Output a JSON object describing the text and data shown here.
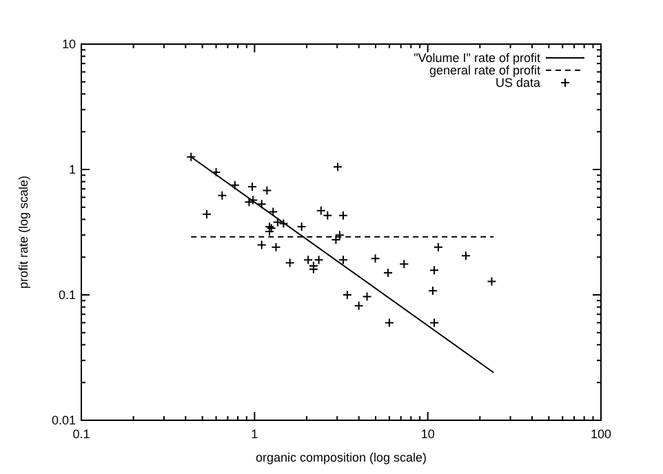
{
  "chart_data": {
    "type": "scatter",
    "xlabel": "organic composition (log scale)",
    "ylabel": "profit rate (log scale)",
    "log": "xy",
    "legend": "top right",
    "grid": false,
    "xlim": [
      0.1,
      100
    ],
    "ylim": [
      0.01,
      10
    ],
    "xticks": [
      0.1,
      {
        "value": 0.2,
        "label": null
      },
      {
        "value": 0.3,
        "label": null
      },
      {
        "value": 0.4,
        "label": null
      },
      {
        "value": 0.5,
        "label": null
      },
      {
        "value": 0.6,
        "label": null
      },
      {
        "value": 0.7,
        "label": null
      },
      {
        "value": 0.8,
        "label": null
      },
      {
        "value": 0.9,
        "label": null
      },
      1,
      {
        "value": 2,
        "label": null
      },
      {
        "value": 3,
        "label": null
      },
      {
        "value": 4,
        "label": null
      },
      {
        "value": 5,
        "label": null
      },
      {
        "value": 6,
        "label": null
      },
      {
        "value": 7,
        "label": null
      },
      {
        "value": 8,
        "label": null
      },
      {
        "value": 9,
        "label": null
      },
      10,
      {
        "value": 20,
        "label": null
      },
      {
        "value": 30,
        "label": null
      },
      {
        "value": 40,
        "label": null
      },
      {
        "value": 50,
        "label": null
      },
      {
        "value": 60,
        "label": null
      },
      {
        "value": 70,
        "label": null
      },
      {
        "value": 80,
        "label": null
      },
      {
        "value": 90,
        "label": null
      },
      100
    ],
    "yticks": [
      0.01,
      {
        "value": 0.02,
        "label": null
      },
      {
        "value": 0.03,
        "label": null
      },
      {
        "value": 0.04,
        "label": null
      },
      {
        "value": 0.05,
        "label": null
      },
      {
        "value": 0.06,
        "label": null
      },
      {
        "value": 0.07,
        "label": null
      },
      {
        "value": 0.08,
        "label": null
      },
      {
        "value": 0.09,
        "label": null
      },
      0.1,
      {
        "value": 0.2,
        "label": null
      },
      {
        "value": 0.3,
        "label": null
      },
      {
        "value": 0.4,
        "label": null
      },
      {
        "value": 0.5,
        "label": null
      },
      {
        "value": 0.6,
        "label": null
      },
      {
        "value": 0.7,
        "label": null
      },
      {
        "value": 0.8,
        "label": null
      },
      {
        "value": 0.9,
        "label": null
      },
      1,
      {
        "value": 2,
        "label": null
      },
      {
        "value": 3,
        "label": null
      },
      {
        "value": 4,
        "label": null
      },
      {
        "value": 5,
        "label": null
      },
      {
        "value": 6,
        "label": null
      },
      {
        "value": 7,
        "label": null
      },
      {
        "value": 8,
        "label": null
      },
      {
        "value": 9,
        "label": null
      },
      10
    ],
    "series": [
      {
        "name": "\"Volume I\" rate of profit",
        "type": "line",
        "line_style": "solid",
        "marker": "none",
        "color": "#000000",
        "x": [
          0.43,
          24
        ],
        "values": [
          1.26,
          0.024
        ]
      },
      {
        "name": "general rate of profit",
        "type": "line",
        "line_style": "dashed",
        "marker": "none",
        "color": "#000000",
        "x": [
          0.43,
          24
        ],
        "values": [
          0.29,
          0.29
        ]
      },
      {
        "name": "US data",
        "marker": "cross",
        "color": "#000000",
        "x": [
          0.43,
          0.53,
          0.6,
          0.65,
          0.77,
          0.97,
          0.93,
          0.98,
          1.1,
          1.18,
          1.28,
          1.22,
          1.25,
          1.22,
          1.36,
          1.47,
          1.1,
          1.33,
          1.87,
          1.6,
          2.04,
          2.19,
          2.19,
          2.35,
          2.42,
          2.64,
          3.02,
          3.25,
          2.95,
          3.1,
          3.25,
          4.98,
          5.9,
          7.3,
          11.5,
          10.9,
          10.7,
          10.9,
          16.6,
          23.4,
          3.43,
          4.0,
          4.46,
          6.0
        ],
        "values": [
          1.26,
          0.44,
          0.95,
          0.62,
          0.75,
          0.73,
          0.55,
          0.57,
          0.53,
          0.68,
          0.46,
          0.35,
          0.34,
          0.32,
          0.38,
          0.37,
          0.25,
          0.24,
          0.35,
          0.18,
          0.19,
          0.17,
          0.16,
          0.19,
          0.47,
          0.43,
          1.05,
          0.43,
          0.275,
          0.3,
          0.19,
          0.195,
          0.15,
          0.176,
          0.24,
          0.157,
          0.108,
          0.06,
          0.205,
          0.128,
          0.1,
          0.082,
          0.097,
          0.06
        ]
      }
    ]
  }
}
